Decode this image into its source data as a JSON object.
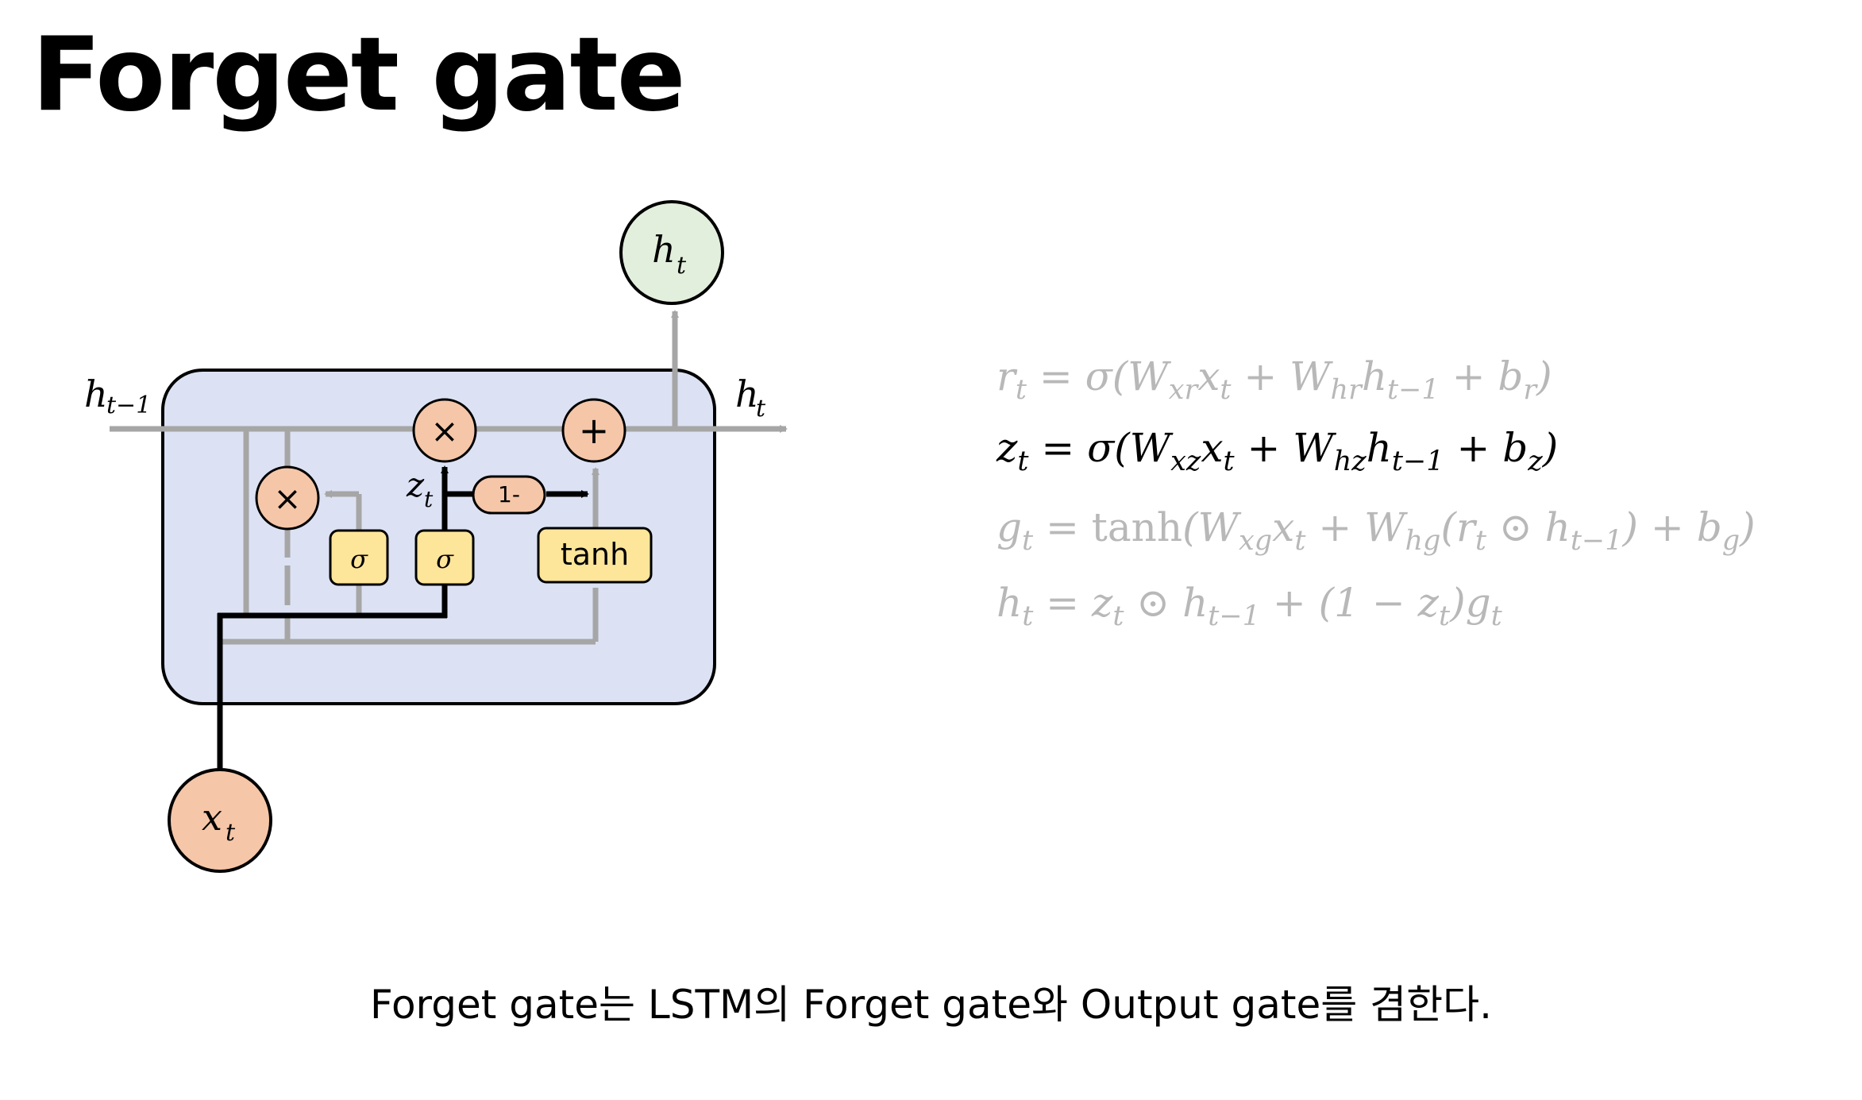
{
  "title": "Forget gate",
  "diagram": {
    "labels": {
      "h_prev": "h",
      "h_prev_sub": "t−1",
      "h_out_right": "h",
      "h_out_right_sub": "t",
      "h_top": "h",
      "h_top_sub": "t",
      "x_in": "x",
      "x_in_sub": "t",
      "z_label": "z",
      "z_label_sub": "t",
      "mult": "×",
      "plus": "+",
      "one_minus": "1-",
      "sigma": "σ",
      "tanh": "tanh"
    },
    "colors": {
      "cell_fill": "#dce2f4",
      "node_orange": "#f5c6a8",
      "node_green": "#e2efdc",
      "gate_yellow": "#fde59a",
      "line_gray": "#a6a6a6",
      "line_black": "#000000"
    }
  },
  "equations": [
    {
      "id": "reset",
      "state": "dim",
      "text": "r_t = σ(W_xr x_t + W_hr h_{t−1} + b_r)"
    },
    {
      "id": "update",
      "state": "active",
      "text": "z_t = σ(W_xz x_t + W_hz h_{t−1} + b_z)"
    },
    {
      "id": "candidate",
      "state": "dim",
      "text": "g_t = tanh(W_xg x_t + W_hg(r_t ⊙ h_{t−1}) + b_g)"
    },
    {
      "id": "hidden",
      "state": "dim",
      "text": "h_t = z_t ⊙ h_{t−1} + (1 − z_t)g_t"
    }
  ],
  "caption": "Forget gate는 LSTM의 Forget gate와 Output gate를 겸한다."
}
